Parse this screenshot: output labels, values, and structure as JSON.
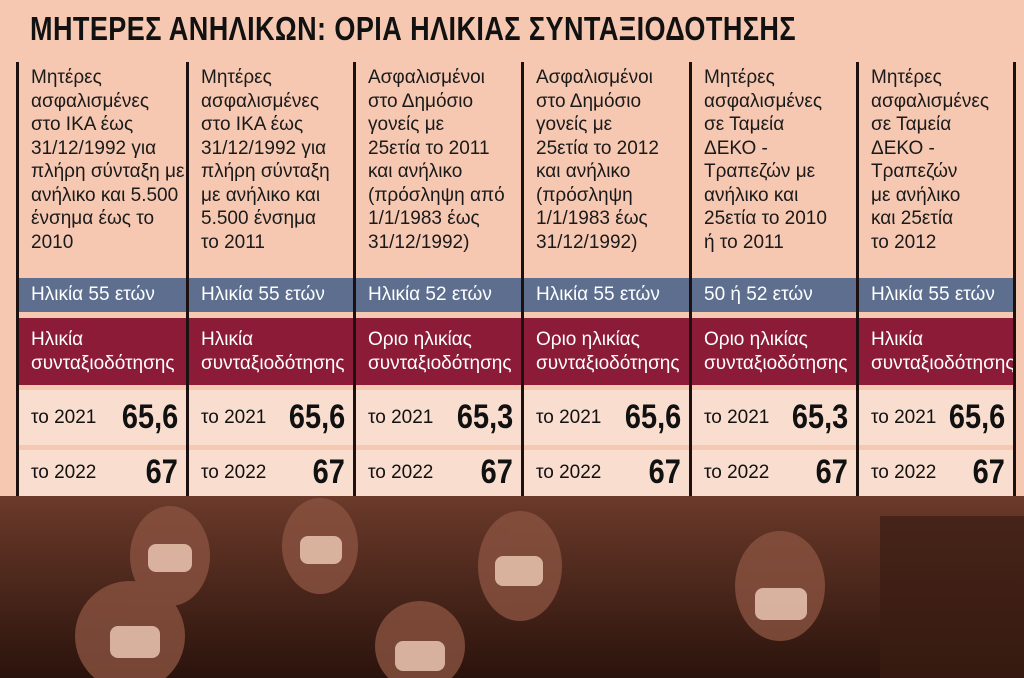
{
  "title": "ΜΗΤΕΡΕΣ ΑΝΗΛΙΚΩΝ: ΟΡΙΑ ΗΛΙΚΙΑΣ ΣΥΝΤΑΞΙΟΔΟΤΗΣΗΣ",
  "columns": [
    {
      "description": [
        "Μητέρες",
        "ασφαλισμένες",
        "στο ΙΚΑ έως",
        "31/12/1992 για",
        "πλήρη σύνταξη με",
        "ανήλικο και 5.500",
        "ένσημα έως το",
        "2010"
      ],
      "age": "Ηλικία 55 ετών",
      "header": [
        "Ηλικία",
        "συνταξιοδότησης"
      ],
      "rows": [
        {
          "label": "το 2021",
          "value": "65,6"
        },
        {
          "label": "το 2022",
          "value": "67"
        }
      ]
    },
    {
      "description": [
        "Μητέρες",
        "ασφαλισμένες",
        "στο ΙΚΑ έως",
        "31/12/1992 για",
        "πλήρη σύνταξη",
        "με ανήλικο και",
        "5.500 ένσημα",
        "το 2011"
      ],
      "age": "Ηλικία 55 ετών",
      "header": [
        "Ηλικία",
        "συνταξιοδότησης"
      ],
      "rows": [
        {
          "label": "το 2021",
          "value": "65,6"
        },
        {
          "label": "το 2022",
          "value": "67"
        }
      ]
    },
    {
      "description": [
        "Ασφαλισμένοι",
        "στο Δημόσιο",
        "γονείς με",
        "25ετία το 2011",
        "και ανήλικο",
        "(πρόσληψη από",
        "1/1/1983 έως",
        "31/12/1992)"
      ],
      "age": "Ηλικία 52 ετών",
      "header": [
        "Οριο ηλικίας",
        "συνταξιοδότησης"
      ],
      "rows": [
        {
          "label": "το 2021",
          "value": "65,3"
        },
        {
          "label": "το 2022",
          "value": "67"
        }
      ]
    },
    {
      "description": [
        "Ασφαλισμένοι",
        "στο Δημόσιο",
        "γονείς με",
        "25ετία το 2012",
        "και ανήλικο",
        "(πρόσληψη",
        "1/1/1983 έως",
        "31/12/1992)"
      ],
      "age": "Ηλικία 55 ετών",
      "header": [
        "Οριο ηλικίας",
        "συνταξιοδότησης"
      ],
      "rows": [
        {
          "label": "το 2021",
          "value": "65,6"
        },
        {
          "label": "το 2022",
          "value": "67"
        }
      ]
    },
    {
      "description": [
        "Μητέρες",
        "ασφαλισμένες",
        "σε Ταμεία",
        "ΔΕΚΟ -",
        "Τραπεζών με",
        "ανήλικο και",
        "25ετία το 2010",
        "ή το 2011"
      ],
      "age": "50 ή 52 ετών",
      "header": [
        "Οριο ηλικίας",
        "συνταξιοδότησης"
      ],
      "rows": [
        {
          "label": "το 2021",
          "value": "65,3"
        },
        {
          "label": "το 2022",
          "value": "67"
        }
      ]
    },
    {
      "description": [
        "Μητέρες",
        "ασφαλισμένες",
        "σε Ταμεία",
        "ΔΕΚΟ -",
        "Τραπεζών",
        "με ανήλικο",
        "και 25ετία",
        "το 2012"
      ],
      "age": "Ηλικία 55 ετών",
      "header": [
        "Ηλικία",
        "συνταξιοδότησης"
      ],
      "rows": [
        {
          "label": "το 2021",
          "value": "65,6"
        },
        {
          "label": "το 2022",
          "value": "67"
        }
      ]
    }
  ]
}
